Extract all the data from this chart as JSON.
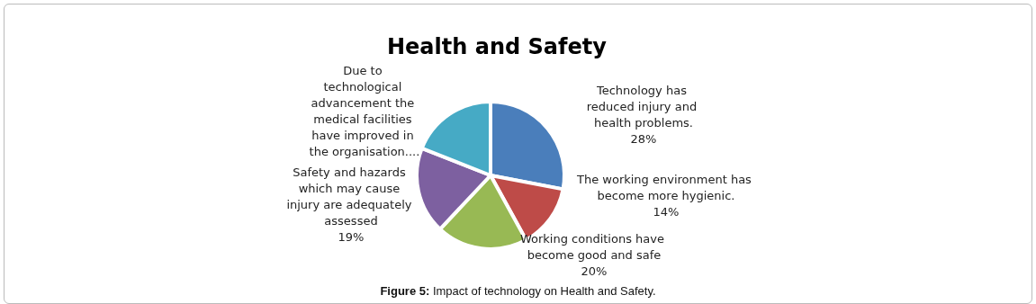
{
  "chart_data": {
    "type": "pie",
    "title": "Health and Safety",
    "categories": [
      "Technology has reduced injury and health problems.",
      "The working environment has become more hygienic.",
      "Working conditions have become good and safe",
      "Safety and hazards which may cause injury are adequately assessed",
      "Due to technological advancement the medical facilities have improved in the organisation...."
    ],
    "values": [
      28,
      14,
      20,
      19,
      19
    ],
    "value_labels": [
      "28%",
      "14%",
      "20%",
      "19%",
      null
    ],
    "colors": [
      "#4a7ebb",
      "#be4b48",
      "#98b954",
      "#7d60a0",
      "#46aac5"
    ],
    "legend": false,
    "annotations": [
      "Figure 5: Impact of technology on Health and Safety."
    ]
  }
}
